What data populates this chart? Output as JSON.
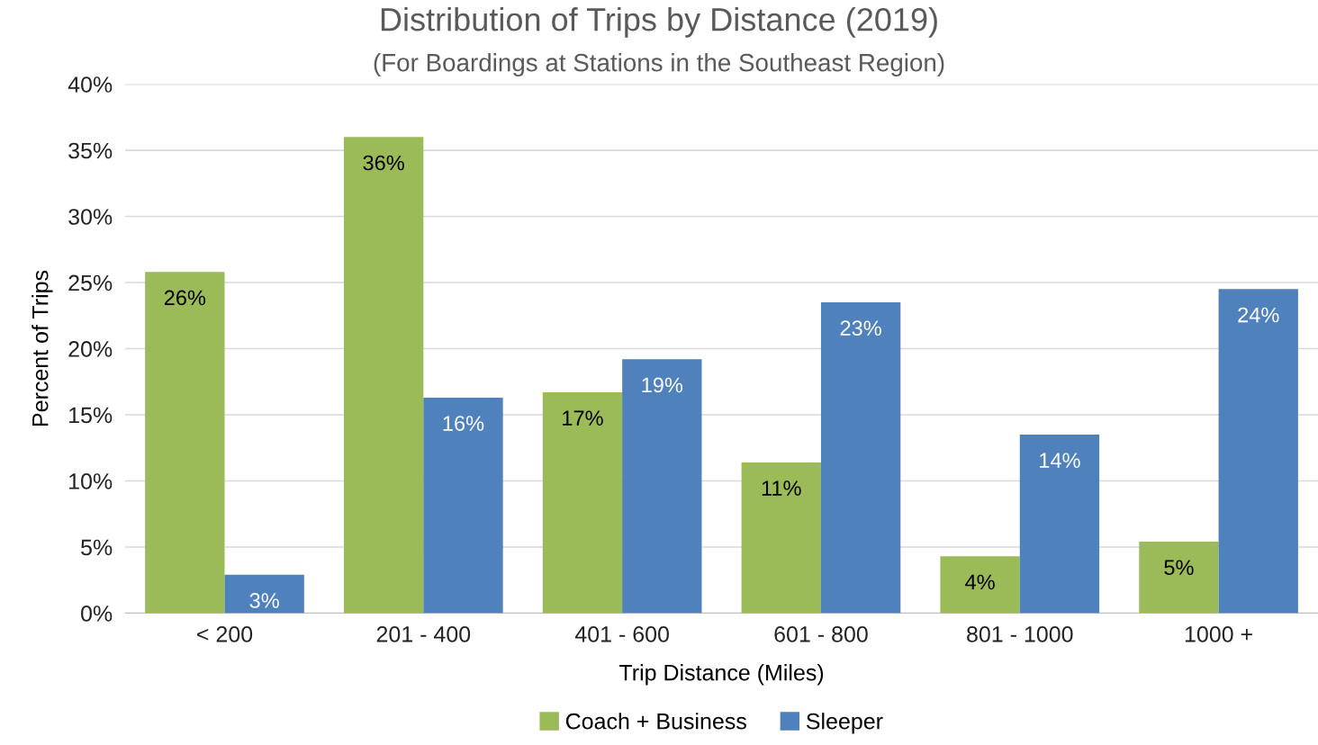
{
  "chart_data": {
    "type": "bar",
    "title": "Distribution of Trips by Distance (2019)",
    "subtitle": "(For Boardings at Stations in the Southeast Region)",
    "xlabel": "Trip Distance (Miles)",
    "ylabel": "Percent of Trips",
    "categories": [
      "< 200",
      "201 - 400",
      "401 - 600",
      "601 - 800",
      "801 - 1000",
      "1000 +"
    ],
    "series": [
      {
        "name": "Coach + Business",
        "color": "#9bbb59",
        "values": [
          25.8,
          36.0,
          16.7,
          11.4,
          4.3,
          5.4
        ],
        "value_labels": [
          "26%",
          "36%",
          "17%",
          "11%",
          "4%",
          "5%"
        ]
      },
      {
        "name": "Sleeper",
        "color": "#4f81bd",
        "values": [
          2.9,
          16.3,
          19.2,
          23.5,
          13.5,
          24.5
        ],
        "value_labels": [
          "3%",
          "16%",
          "19%",
          "23%",
          "14%",
          "24%"
        ]
      }
    ],
    "ylim": [
      0,
      40
    ],
    "yticks": [
      {
        "value": 0,
        "label": "0%"
      },
      {
        "value": 5,
        "label": "5%"
      },
      {
        "value": 10,
        "label": "10%"
      },
      {
        "value": 15,
        "label": "15%"
      },
      {
        "value": 20,
        "label": "20%"
      },
      {
        "value": 25,
        "label": "25%"
      },
      {
        "value": 30,
        "label": "30%"
      },
      {
        "value": 35,
        "label": "35%"
      },
      {
        "value": 40,
        "label": "40%"
      }
    ],
    "grid": "y",
    "legend": "bottom"
  }
}
